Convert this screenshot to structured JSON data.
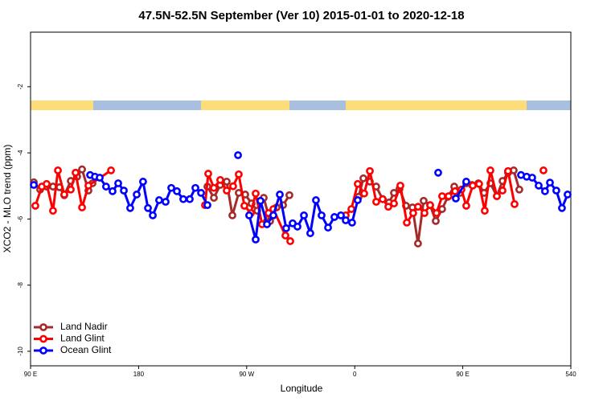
{
  "chart_data": {
    "type": "line",
    "title": "47.5N-52.5N September (Ver 10)   2015-01-01 to 2020-12-18",
    "xlabel": "Longitude",
    "ylabel": "XCO2 - MLO trend (ppm)",
    "xlim": [
      90,
      540
    ],
    "xticks": [
      {
        "value": 90,
        "label": "90 E"
      },
      180,
      {
        "value": 270,
        "label": "90 W"
      },
      {
        "value": 360,
        "label": "0"
      },
      {
        "value": 450,
        "label": "90 E"
      },
      540
    ],
    "ylim": [
      -10.44,
      -0.35
    ],
    "yticks": [
      -10,
      -8,
      -6,
      -4,
      -2
    ],
    "legend": "lower left",
    "series": [
      {
        "name": "Land Nadir",
        "color": "#a52a2a",
        "x": [
          92.7,
          98.0,
          103.4,
          108.7,
          114.1,
          118.1,
          123.5,
          128.8,
          132.9,
          138.2,
          141.6,
          null,
          237.3,
          242.7,
          248.0,
          253.4,
          258.1,
          263.4,
          268.8,
          274.1,
          278.8,
          284.2,
          289.5,
          294.9,
          300.3,
          305.6,
          null,
          363.2,
          367.2,
          372.6,
          377.9,
          383.3,
          388.6,
          392.7,
          397.3,
          402.7,
          408.1,
          412.7,
          417.4,
          422.8,
          427.5,
          432.8,
          437.5,
          442.9,
          447.6,
          452.9,
          457.6,
          463.0,
          467.7,
          473.0,
          478.4,
          483.1,
          487.7,
          492.4,
          497.1
        ],
        "values": [
          -4.89,
          -5.11,
          -5.02,
          -5.02,
          -5.04,
          -5.28,
          -4.85,
          -4.72,
          -4.5,
          -5.14,
          -4.92,
          null,
          -5.02,
          -5.36,
          -4.97,
          -4.87,
          -5.89,
          -5.21,
          -5.26,
          -5.53,
          -5.75,
          -5.36,
          -6.06,
          -5.65,
          -5.58,
          -5.28,
          null,
          -5.33,
          -4.77,
          -4.87,
          -5.02,
          -5.4,
          -5.5,
          -5.21,
          -5.09,
          -5.6,
          -5.65,
          -6.74,
          -5.45,
          -5.58,
          -6.06,
          -5.7,
          -5.33,
          -5.02,
          -5.21,
          -4.92,
          -4.97,
          -4.92,
          -5.21,
          -4.92,
          -5.31,
          -4.85,
          -4.6,
          -4.53,
          -5.11
        ]
      },
      {
        "name": "Land Glint",
        "color": "#ff0000",
        "x": [
          94.0,
          99.4,
          103.4,
          108.7,
          112.8,
          118.1,
          123.5,
          127.5,
          132.9,
          138.2,
          157.0,
          null,
          235.3,
          238.0,
          242.7,
          248.0,
          253.4,
          258.7,
          263.4,
          268.1,
          273.5,
          277.5,
          282.8,
          288.2,
          292.2,
          302.3,
          306.3,
          null,
          352.5,
          357.2,
          362.5,
          367.9,
          372.6,
          377.9,
          383.3,
          388.0,
          392.7,
          398.0,
          403.4,
          408.7,
          412.7,
          418.1,
          422.8,
          428.1,
          432.8,
          438.2,
          443.6,
          448.9,
          452.9,
          458.3,
          463.6,
          468.3,
          473.0,
          478.4,
          483.1,
          487.7,
          493.1,
          null,
          517.2
        ],
        "values": [
          -5.6,
          -5.02,
          -4.94,
          -5.75,
          -4.53,
          -5.26,
          -5.11,
          -4.6,
          -5.65,
          -4.99,
          -4.53,
          null,
          -5.58,
          -4.63,
          -5.06,
          -4.82,
          -5.14,
          -5.01,
          -4.65,
          -5.6,
          -5.82,
          -5.23,
          -6.16,
          -5.82,
          -5.7,
          -6.5,
          -6.67,
          null,
          -5.89,
          -5.7,
          -4.94,
          -5.23,
          -4.55,
          -5.48,
          -5.4,
          -5.63,
          -5.53,
          -4.99,
          -6.11,
          -5.82,
          -5.63,
          -5.82,
          -5.58,
          -5.82,
          -5.31,
          -5.31,
          -5.16,
          -5.11,
          -5.6,
          -4.99,
          -4.94,
          -5.75,
          -4.53,
          -5.31,
          -5.14,
          -4.55,
          -5.55,
          null,
          -4.53
        ]
      },
      {
        "name": "Ocean Glint",
        "color": "#0000ff",
        "x": [
          92.7,
          null,
          139.6,
          143.6,
          147.6,
          152.9,
          158.3,
          163.0,
          167.7,
          173.0,
          178.4,
          183.7,
          187.8,
          191.8,
          197.1,
          202.5,
          207.2,
          211.9,
          217.2,
          222.6,
          227.3,
          232.0,
          237.3,
          null,
          262.8,
          null,
          272.1,
          277.5,
          281.5,
          286.9,
          292.2,
          297.6,
          302.9,
          308.3,
          312.3,
          317.7,
          323.0,
          327.7,
          332.4,
          337.8,
          343.1,
          348.5,
          352.5,
          357.8,
          362.5,
          null,
          429.5,
          null,
          444.2,
          452.9,
          null,
          498.5,
          503.2,
          507.8,
          513.2,
          518.5,
          522.6,
          527.9,
          532.6,
          537.3
        ],
        "values": [
          -4.97,
          null,
          -4.67,
          -4.72,
          -4.75,
          -5.02,
          -5.16,
          -4.92,
          -5.14,
          -5.67,
          -5.26,
          -4.87,
          -5.67,
          -5.89,
          -5.43,
          -5.48,
          -5.06,
          -5.16,
          -5.4,
          -5.4,
          -5.06,
          -5.21,
          -5.58,
          null,
          -4.07,
          null,
          -5.89,
          -6.62,
          -5.45,
          -6.16,
          -5.89,
          -5.26,
          -6.28,
          -6.13,
          -6.23,
          -5.89,
          -6.43,
          -5.43,
          -5.89,
          -6.26,
          -5.94,
          -5.89,
          -6.04,
          -6.11,
          -5.43,
          null,
          -4.6,
          null,
          -5.38,
          -4.87,
          null,
          -4.67,
          -4.72,
          -4.75,
          -4.99,
          -5.16,
          -4.9,
          -5.14,
          -5.67,
          -5.26
        ]
      }
    ]
  }
}
